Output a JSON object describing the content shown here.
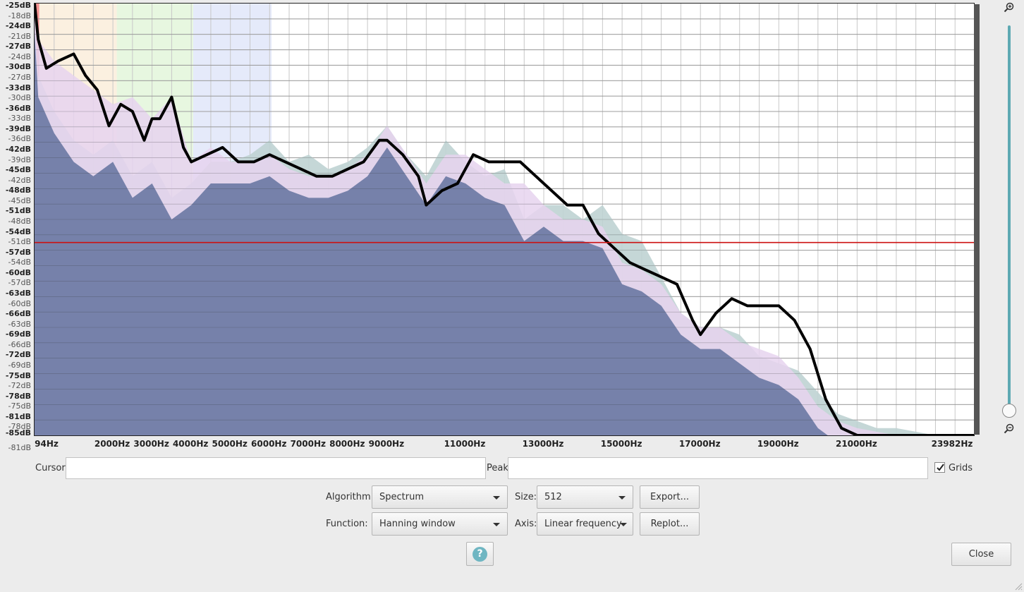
{
  "chart_data": {
    "type": "area",
    "title": "",
    "xlabel": "",
    "ylabel": "",
    "xlim": [
      0,
      23982
    ],
    "ylim": [
      -85,
      -25
    ],
    "x_tick_labels": [
      "94Hz",
      "2000Hz",
      "3000Hz",
      "4000Hz",
      "5000Hz",
      "6000Hz",
      "7000Hz",
      "8000Hz",
      "9000Hz",
      "11000Hz",
      "13000Hz",
      "15000Hz",
      "17000Hz",
      "19000Hz",
      "21000Hz",
      "23982Hz"
    ],
    "x_tick_values": [
      94,
      2000,
      3000,
      4000,
      5000,
      6000,
      7000,
      8000,
      9000,
      11000,
      13000,
      15000,
      17000,
      19000,
      21000,
      23982
    ],
    "y_major_labels": [
      "-25dB",
      "-24dB",
      "-27dB",
      "-30dB",
      "-33dB",
      "-36dB",
      "-39dB",
      "-42dB",
      "-45dB",
      "-48dB",
      "-51dB",
      "-54dB",
      "-57dB",
      "-60dB",
      "-63dB",
      "-66dB",
      "-69dB",
      "-72dB",
      "-75dB",
      "-78dB",
      "-81dB",
      "-85dB"
    ],
    "y_minor_labels": [
      "-18dB",
      "-21dB",
      "-24dB",
      "-27dB",
      "-30dB",
      "-33dB",
      "-36dB",
      "-39dB",
      "-42dB",
      "-45dB",
      "-48dB",
      "-51dB",
      "-54dB",
      "-57dB",
      "-60dB",
      "-63dB",
      "-66dB",
      "-69dB",
      "-72dB",
      "-75dB",
      "-78dB",
      "-81dB"
    ],
    "grid": true,
    "series": [
      {
        "color": "#bfd3d3",
        "x": [
          0,
          94,
          500,
          1000,
          1500,
          2000,
          2500,
          3000,
          3500,
          4000,
          4500,
          5000,
          5500,
          6000,
          6500,
          7000,
          7500,
          8000,
          8500,
          9000,
          9500,
          10000,
          10500,
          11000,
          11500,
          12000,
          12500,
          13000,
          13500,
          14000,
          14500,
          15000,
          15500,
          16000,
          16500,
          17000,
          17500,
          18000,
          18500,
          19000,
          19500,
          20000,
          20500,
          21000,
          21500,
          22000,
          22500,
          23000,
          23500,
          23982
        ],
        "values": [
          -26,
          -35,
          -40,
          -44,
          -46,
          -44,
          -49,
          -47,
          -52,
          -50,
          -47,
          -47,
          -46,
          -44,
          -47,
          -46,
          -48,
          -47,
          -45,
          -42,
          -46,
          -49,
          -44,
          -47,
          -49,
          -48,
          -55,
          -53,
          -53,
          -55,
          -53,
          -57,
          -58,
          -63,
          -68,
          -70,
          -70,
          -71,
          -74,
          -75,
          -76,
          -79,
          -82,
          -83,
          -84,
          -84,
          -84.5,
          -85,
          -85,
          -85
        ]
      },
      {
        "color": "#e6d3ef",
        "x": [
          0,
          94,
          500,
          1000,
          1500,
          2000,
          2500,
          3000,
          3500,
          4000,
          4500,
          5000,
          5500,
          6000,
          6500,
          7000,
          7500,
          8000,
          8500,
          9000,
          9500,
          10000,
          10500,
          11000,
          11500,
          12000,
          12500,
          13000,
          13500,
          14000,
          14500,
          15000,
          15500,
          16000,
          16500,
          17000,
          17500,
          18000,
          18500,
          19000,
          19500,
          20000,
          20500,
          21000,
          21500,
          22000,
          22500,
          23000,
          23500,
          23982
        ],
        "values": [
          -26,
          -30,
          -33,
          -35,
          -37,
          -39,
          -38,
          -41,
          -38,
          -47,
          -45,
          -47,
          -47,
          -46,
          -48,
          -49,
          -49,
          -48,
          -46,
          -42,
          -46,
          -50,
          -46,
          -46,
          -48,
          -50,
          -50,
          -53,
          -55,
          -55,
          -56,
          -61,
          -62,
          -64,
          -68,
          -70,
          -70,
          -72,
          -73,
          -74,
          -77,
          -81,
          -83,
          -84,
          -84.5,
          -85,
          -85,
          -85,
          -85,
          -85
        ]
      },
      {
        "color": "#000000",
        "x": [
          0,
          94,
          300,
          600,
          1000,
          1300,
          1600,
          1900,
          2200,
          2500,
          2800,
          3000,
          3200,
          3500,
          3800,
          4000,
          4400,
          4800,
          5200,
          5600,
          6000,
          6400,
          6800,
          7200,
          7600,
          8000,
          8400,
          8800,
          9000,
          9400,
          9800,
          10000,
          10400,
          10800,
          11200,
          11600,
          12000,
          12400,
          12800,
          13200,
          13600,
          14000,
          14400,
          14800,
          15200,
          15600,
          16000,
          16400,
          16800,
          17000,
          17400,
          17800,
          18200,
          18600,
          19000,
          19400,
          19800,
          20200,
          20600,
          21000,
          21400,
          21800,
          22200,
          22600,
          23000,
          23400,
          23982
        ],
        "values": [
          -25,
          -30,
          -34,
          -33,
          -32,
          -35,
          -37,
          -42,
          -39,
          -40,
          -44,
          -41,
          -41,
          -38,
          -45,
          -47,
          -46,
          -45,
          -47,
          -47,
          -46,
          -47,
          -48,
          -49,
          -49,
          -48,
          -47,
          -44,
          -44,
          -46,
          -49,
          -53,
          -51,
          -50,
          -46,
          -47,
          -47,
          -47,
          -49,
          -51,
          -53,
          -53,
          -57,
          -59,
          -61,
          -62,
          -63,
          -64,
          -69,
          -71,
          -68,
          -66,
          -67,
          -67,
          -67,
          -69,
          -73,
          -80,
          -84,
          -85,
          -85,
          -85,
          -85,
          -85,
          -85,
          -85,
          -85
        ]
      }
    ],
    "dark_fill_color": "#6c7aa4",
    "band_colors": [
      "#f06f6f",
      "#f7e3c7",
      "#d3f0c7",
      "#cfd9f6"
    ],
    "cursor_line_color": "#cc1111",
    "cursor_line_value": -58.2
  },
  "controls": {
    "cursor_label": "Cursor:",
    "cursor_value": "",
    "peak_label": "Peak:",
    "peak_value": "",
    "grids_label": "Grids",
    "grids_checked": true,
    "algorithm_label": "Algorithm:",
    "algorithm_value": "Spectrum",
    "size_label": "Size:",
    "size_value": "512",
    "export_label": "Export...",
    "function_label": "Function:",
    "function_value": "Hanning window",
    "axis_label": "Axis:",
    "axis_value": "Linear frequency",
    "replot_label": "Replot...",
    "help_glyph": "?",
    "close_label": "Close"
  },
  "icons": {
    "zoom_in": "zoom-in-icon",
    "zoom_out": "zoom-out-icon",
    "help": "help-icon",
    "check": "checkmark-icon",
    "resize": "resize-grip-icon"
  },
  "zoom": {
    "level": 0.98
  }
}
